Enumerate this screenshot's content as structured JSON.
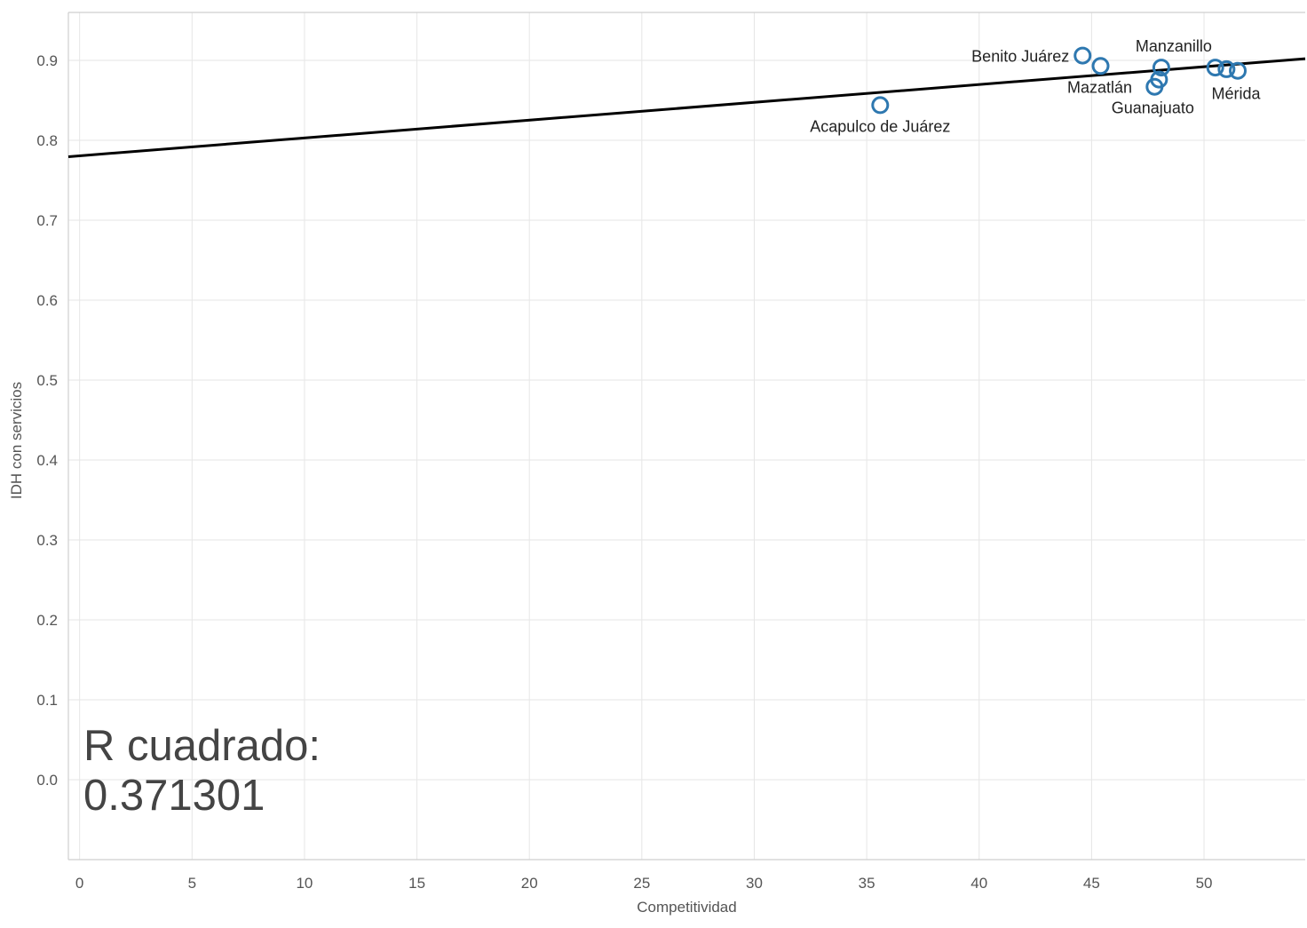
{
  "chart_data": {
    "type": "scatter",
    "title": "",
    "xlabel": "Competitividad",
    "ylabel": "IDH con servicios",
    "xlim": [
      -0.5,
      54.5
    ],
    "ylim": [
      -0.1,
      0.96
    ],
    "xticks": [
      0,
      5,
      10,
      15,
      20,
      25,
      30,
      35,
      40,
      45,
      50
    ],
    "yticks": [
      0.0,
      0.1,
      0.2,
      0.3,
      0.4,
      0.5,
      0.6,
      0.7,
      0.8,
      0.9
    ],
    "grid": true,
    "points": [
      {
        "x": 35.6,
        "y": 0.844,
        "label": "Acapulco de Juárez"
      },
      {
        "x": 44.6,
        "y": 0.906,
        "label": "Benito Juárez"
      },
      {
        "x": 45.4,
        "y": 0.893,
        "label": "Mazatlán"
      },
      {
        "x": 47.8,
        "y": 0.867,
        "label": "Guanajuato"
      },
      {
        "x": 48.0,
        "y": 0.876,
        "label": ""
      },
      {
        "x": 48.1,
        "y": 0.891,
        "label": "Manzanillo"
      },
      {
        "x": 50.5,
        "y": 0.891,
        "label": ""
      },
      {
        "x": 51.0,
        "y": 0.889,
        "label": ""
      },
      {
        "x": 51.5,
        "y": 0.887,
        "label": "Mérida"
      }
    ],
    "trendline": {
      "x": [
        -0.5,
        54.5
      ],
      "y": [
        0.7795,
        0.9021
      ]
    },
    "r_squared_label": "R cuadrado:",
    "r_squared_value": "0.371301",
    "colors": {
      "point": "#2e78b0",
      "trend": "#000000",
      "grid": "#e6e6e6",
      "text": "#555555"
    }
  }
}
